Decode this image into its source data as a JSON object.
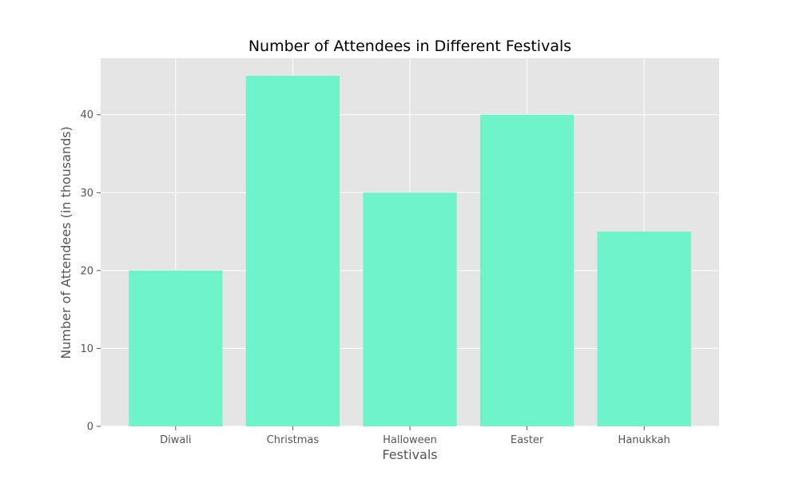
{
  "chart_data": {
    "type": "bar",
    "title": "Number of Attendees in Different Festivals",
    "xlabel": "Festivals",
    "ylabel": "Number of Attendees (in thousands)",
    "categories": [
      "Diwali",
      "Christmas",
      "Halloween",
      "Easter",
      "Hanukkah"
    ],
    "values": [
      20,
      45,
      30,
      40,
      25
    ],
    "ylim": [
      0,
      47.25
    ],
    "yticks": [
      0,
      10,
      20,
      30,
      40
    ],
    "grid": true,
    "legend": "none",
    "colors": {
      "bar": "#6ff3ca",
      "plot_background": "#e5e5e5",
      "grid": "#ffffff",
      "text": "#555555",
      "title": "#000000"
    }
  }
}
